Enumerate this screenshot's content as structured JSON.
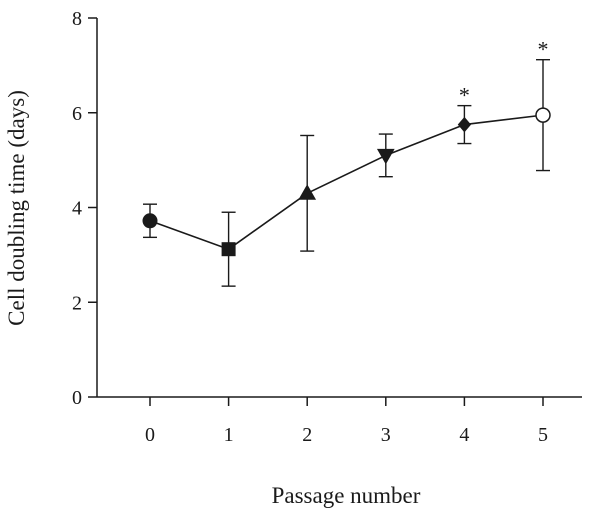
{
  "chart_data": {
    "type": "line",
    "xlabel": "Passage number",
    "ylabel": "Cell doubling time (days)",
    "xlim": [
      0,
      5
    ],
    "ylim": [
      0,
      8
    ],
    "x_ticks": [
      "0",
      "1",
      "2",
      "3",
      "4",
      "5"
    ],
    "y_ticks": [
      "0",
      "2",
      "4",
      "6",
      "8"
    ],
    "grid": false,
    "legend": "none",
    "series": [
      {
        "x": [
          0,
          1,
          2,
          3,
          4,
          5
        ],
        "values": [
          3.72,
          3.12,
          4.3,
          5.1,
          5.75,
          5.95
        ],
        "error": [
          0.35,
          0.78,
          1.22,
          0.45,
          0.4,
          1.17
        ],
        "markers": [
          "filled-circle",
          "filled-square",
          "filled-triangle-up",
          "filled-triangle-down",
          "filled-diamond",
          "open-circle"
        ],
        "significance": [
          "",
          "",
          "",
          "",
          "*",
          "*"
        ]
      }
    ]
  }
}
